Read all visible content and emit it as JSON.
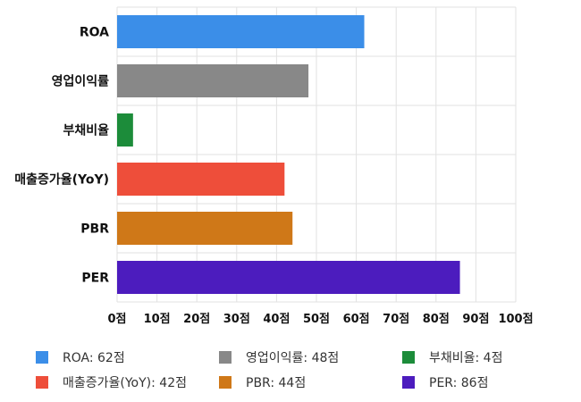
{
  "chart_data": {
    "type": "bar",
    "orientation": "horizontal",
    "categories": [
      "ROA",
      "영업이익률",
      "부채비율",
      "매출증가율(YoY)",
      "PBR",
      "PER"
    ],
    "values": [
      62,
      48,
      4,
      42,
      44,
      86
    ],
    "colors": [
      "#3b8ee8",
      "#888888",
      "#1c8c3a",
      "#ee4e3a",
      "#cf7818",
      "#4c1cbe"
    ],
    "xlim": [
      0,
      100
    ],
    "x_ticks": [
      0,
      10,
      20,
      30,
      40,
      50,
      60,
      70,
      80,
      90,
      100
    ],
    "x_tick_labels": [
      "0점",
      "10점",
      "20점",
      "30점",
      "40점",
      "50점",
      "60점",
      "70점",
      "80점",
      "90점",
      "100점"
    ],
    "grid": true,
    "legend_position": "bottom",
    "legend": [
      {
        "label": "ROA: 62점",
        "color": "#3b8ee8"
      },
      {
        "label": "영업이익률: 48점",
        "color": "#888888"
      },
      {
        "label": "부채비율: 4점",
        "color": "#1c8c3a"
      },
      {
        "label": "매출증가율(YoY): 42점",
        "color": "#ee4e3a"
      },
      {
        "label": "PBR: 44점",
        "color": "#cf7818"
      },
      {
        "label": "PER: 86점",
        "color": "#4c1cbe"
      }
    ]
  }
}
